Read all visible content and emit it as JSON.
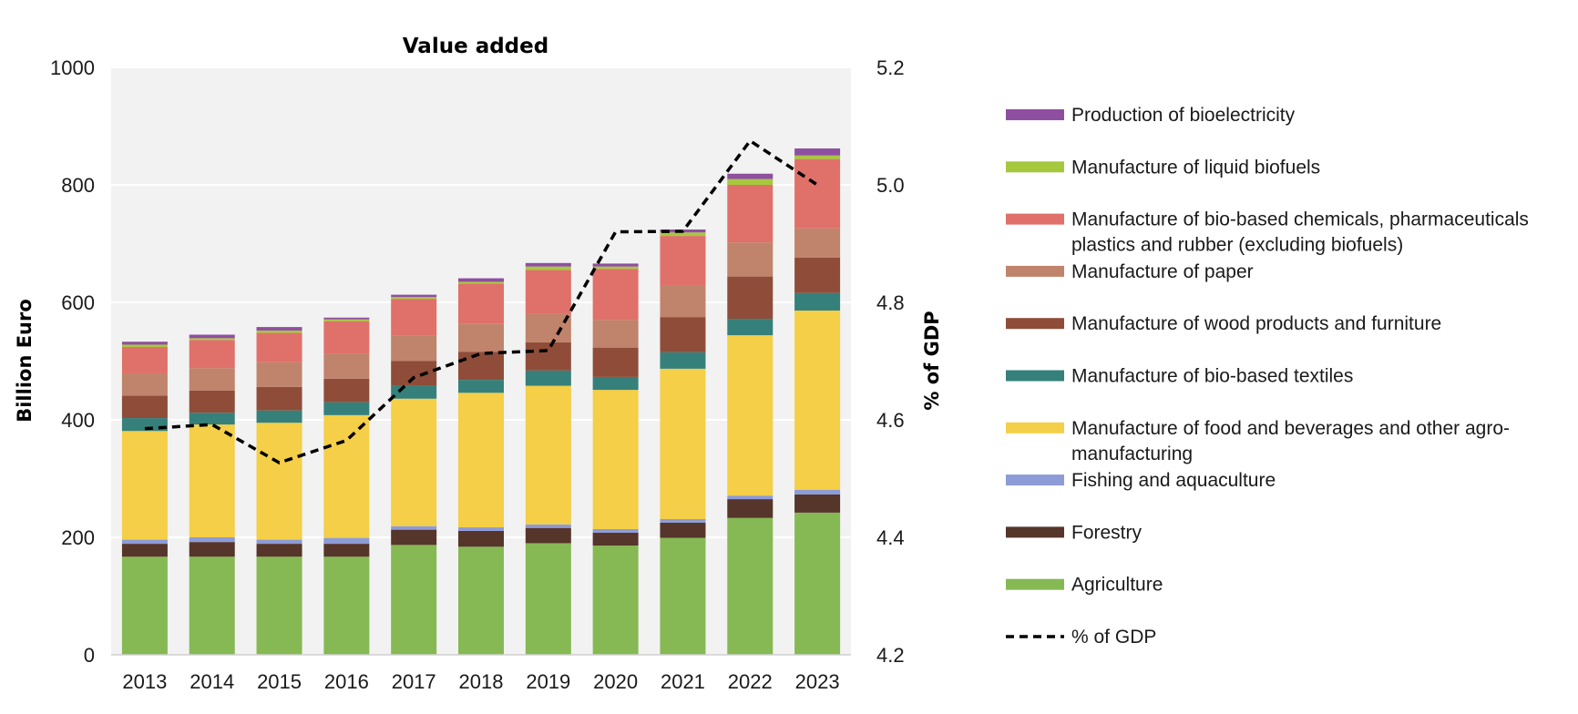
{
  "chart_data": {
    "type": "bar",
    "stacked": true,
    "title": "Value added",
    "ylabel": "Billion Euro",
    "y2label": "% of GDP",
    "ylim": [
      0,
      1000
    ],
    "y2lim": [
      4.2,
      5.2
    ],
    "yticks": [
      "0",
      "200",
      "400",
      "600",
      "800",
      "1000"
    ],
    "y2ticks": [
      "4.2",
      "4.4",
      "4.6",
      "4.8",
      "5.0",
      "5.2"
    ],
    "grid": true,
    "legend_position": "right",
    "categories": [
      "2013",
      "2014",
      "2015",
      "2016",
      "2017",
      "2018",
      "2019",
      "2020",
      "2021",
      "2022",
      "2023"
    ],
    "series": [
      {
        "name": "Agriculture",
        "color": "#86b953",
        "values": [
          167,
          167,
          167,
          167,
          187,
          184,
          190,
          186,
          199,
          233,
          242
        ]
      },
      {
        "name": "Forestry",
        "color": "#56352b",
        "values": [
          22,
          25,
          22,
          22,
          26,
          27,
          26,
          22,
          26,
          32,
          31
        ]
      },
      {
        "name": "Fishing and aquaculture",
        "color": "#8d9bd7",
        "values": [
          7,
          8,
          7,
          10,
          6,
          6,
          6,
          6,
          6,
          6,
          8
        ]
      },
      {
        "name": "Manufacture of food and beverages and other agro-manufacturing",
        "color": "#f4cf47",
        "values": [
          185,
          192,
          199,
          209,
          217,
          229,
          236,
          237,
          256,
          273,
          305
        ]
      },
      {
        "name": "Manufacture of bio-based textiles",
        "color": "#35807b",
        "values": [
          22,
          20,
          21,
          22,
          22,
          22,
          26,
          22,
          28,
          28,
          30
        ]
      },
      {
        "name": "Manufacture of wood products and furniture",
        "color": "#8f4d39",
        "values": [
          38,
          38,
          40,
          40,
          42,
          48,
          48,
          50,
          60,
          72,
          60
        ]
      },
      {
        "name": "Manufacture of paper",
        "color": "#c0836b",
        "values": [
          38,
          38,
          42,
          43,
          44,
          48,
          48,
          47,
          53,
          58,
          50
        ]
      },
      {
        "name": "Manufacture of bio-based chemicals, pharmaceuticals plastics and rubber (excluding biofuels)",
        "color": "#e0706a",
        "values": [
          45,
          48,
          50,
          55,
          62,
          68,
          75,
          87,
          85,
          98,
          118
        ]
      },
      {
        "name": "Manufacture of liquid biofuels",
        "color": "#a6c83e",
        "values": [
          4,
          3,
          4,
          3,
          3,
          3,
          6,
          4,
          6,
          10,
          6
        ]
      },
      {
        "name": "Production of bioelectricity",
        "color": "#8f4fa0",
        "values": [
          5,
          6,
          6,
          3,
          4,
          6,
          6,
          5,
          5,
          9,
          12
        ]
      }
    ],
    "line": {
      "name": "% of GDP",
      "color": "#000000",
      "values": [
        4.585,
        4.592,
        4.527,
        4.565,
        4.672,
        4.713,
        4.718,
        4.92,
        4.921,
        5.075,
        5.0
      ]
    }
  },
  "legend": [
    {
      "label_lines": [
        "Production of bioelectricity"
      ],
      "color": "#8f4fa0",
      "kind": "bar"
    },
    {
      "label_lines": [
        "Manufacture of liquid biofuels"
      ],
      "color": "#a6c83e",
      "kind": "bar"
    },
    {
      "label_lines": [
        "Manufacture of bio-based chemicals, pharmaceuticals",
        "plastics and rubber (excluding biofuels)"
      ],
      "color": "#e0706a",
      "kind": "bar"
    },
    {
      "label_lines": [
        "Manufacture of paper"
      ],
      "color": "#c0836b",
      "kind": "bar"
    },
    {
      "label_lines": [
        "Manufacture of wood products and furniture"
      ],
      "color": "#8f4d39",
      "kind": "bar"
    },
    {
      "label_lines": [
        "Manufacture of bio-based textiles"
      ],
      "color": "#35807b",
      "kind": "bar"
    },
    {
      "label_lines": [
        "Manufacture of food and beverages and other agro-",
        "manufacturing"
      ],
      "color": "#f4cf47",
      "kind": "bar"
    },
    {
      "label_lines": [
        "Fishing and aquaculture"
      ],
      "color": "#8d9bd7",
      "kind": "bar"
    },
    {
      "label_lines": [
        "Forestry"
      ],
      "color": "#56352b",
      "kind": "bar"
    },
    {
      "label_lines": [
        "Agriculture"
      ],
      "color": "#86b953",
      "kind": "bar"
    },
    {
      "label_lines": [
        "% of GDP"
      ],
      "color": "#000000",
      "kind": "line"
    }
  ]
}
